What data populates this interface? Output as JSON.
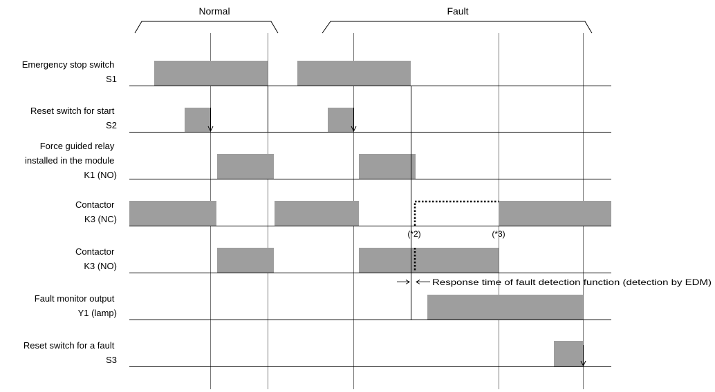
{
  "colors": {
    "pulse": "#9e9e9e",
    "line": "#000000",
    "guide": "#7a7a7a",
    "background": "#ffffff"
  },
  "headers": {
    "normal": "Normal",
    "fault": "Fault"
  },
  "signals": [
    {
      "id": "s1",
      "label_lines": [
        "Emergency stop switch",
        "S1"
      ]
    },
    {
      "id": "s2",
      "label_lines": [
        "Reset switch for start",
        "S2"
      ]
    },
    {
      "id": "k1",
      "label_lines": [
        "Force guided relay",
        "installed in the module",
        "K1 (NO)"
      ]
    },
    {
      "id": "k3nc",
      "label_lines": [
        "Contactor",
        "K3 (NC)"
      ]
    },
    {
      "id": "k3no",
      "label_lines": [
        "Contactor",
        "K3 (NO)"
      ]
    },
    {
      "id": "y1",
      "label_lines": [
        "Fault monitor output",
        "Y1 (lamp)"
      ]
    },
    {
      "id": "s3",
      "label_lines": [
        "Reset switch for a fault",
        "S3"
      ]
    }
  ],
  "annotations": {
    "note2": "(*2)",
    "note3": "(*3)",
    "response_time": "Response time of fault detection function (detection by EDM)"
  }
}
